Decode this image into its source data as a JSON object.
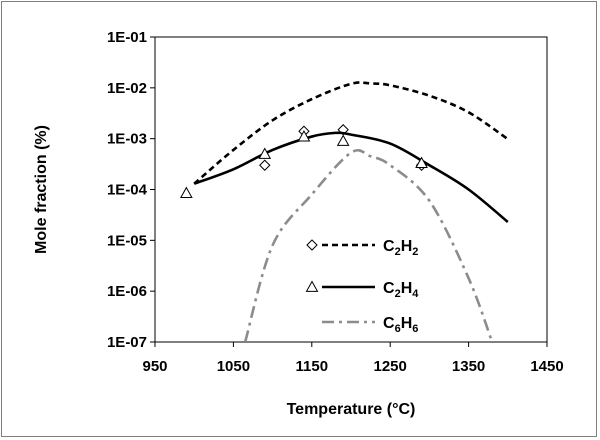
{
  "chart_data": {
    "type": "line",
    "title": "",
    "xlabel": "Temperature (°C)",
    "ylabel": "Mole fraction (%)",
    "x_range": [
      950,
      1450
    ],
    "y_range": [
      1e-07,
      0.1
    ],
    "y_scale": "log",
    "x_ticks": [
      "950",
      "1050",
      "1150",
      "1250",
      "1350",
      "1450"
    ],
    "y_ticks": [
      "1E-07",
      "1E-06",
      "1E-05",
      "1E-04",
      "1E-03",
      "1E-02",
      "1E-01"
    ],
    "grid": false,
    "legend_position": "center",
    "series": [
      {
        "name": "C2H2",
        "name_parts": [
          [
            "C",
            false
          ],
          [
            "2",
            true
          ],
          [
            "H",
            false
          ],
          [
            "2",
            true
          ]
        ],
        "line_style": "dashed",
        "line_color": "#000000",
        "marker": "diamond",
        "curve": [
          [
            1000,
            0.00013
          ],
          [
            1050,
            0.0006
          ],
          [
            1100,
            0.0023
          ],
          [
            1150,
            0.006
          ],
          [
            1200,
            0.012
          ],
          [
            1225,
            0.0122
          ],
          [
            1250,
            0.0112
          ],
          [
            1300,
            0.007
          ],
          [
            1350,
            0.0033
          ],
          [
            1400,
            0.00098
          ]
        ],
        "points": [
          [
            1090,
            0.0003
          ],
          [
            1140,
            0.0014
          ],
          [
            1190,
            0.0015
          ],
          [
            1290,
            0.0003
          ]
        ]
      },
      {
        "name": "C2H4",
        "name_parts": [
          [
            "C",
            false
          ],
          [
            "2",
            true
          ],
          [
            "H",
            false
          ],
          [
            "4",
            true
          ]
        ],
        "line_style": "solid",
        "line_color": "#000000",
        "marker": "triangle",
        "curve": [
          [
            1000,
            0.00013
          ],
          [
            1050,
            0.00025
          ],
          [
            1100,
            0.0006
          ],
          [
            1150,
            0.0011
          ],
          [
            1180,
            0.0013
          ],
          [
            1200,
            0.0012
          ],
          [
            1250,
            0.0008
          ],
          [
            1300,
            0.0003
          ],
          [
            1350,
            0.0001
          ],
          [
            1400,
            2.3e-05
          ]
        ],
        "points": [
          [
            990,
            8.5e-05
          ],
          [
            1090,
            0.0005
          ],
          [
            1140,
            0.0011
          ],
          [
            1190,
            0.0009
          ],
          [
            1290,
            0.00033
          ]
        ]
      },
      {
        "name": "C6H6",
        "name_parts": [
          [
            "C",
            false
          ],
          [
            "6",
            true
          ],
          [
            "H",
            false
          ],
          [
            "6",
            true
          ]
        ],
        "line_style": "dashdot",
        "line_color": "#8c8c8c",
        "marker": "none",
        "curve": [
          [
            1065,
            1e-07
          ],
          [
            1100,
            8e-06
          ],
          [
            1150,
            8e-05
          ],
          [
            1200,
            0.00053
          ],
          [
            1225,
            0.00045
          ],
          [
            1250,
            0.0003
          ],
          [
            1300,
            6e-05
          ],
          [
            1350,
            1.8e-06
          ],
          [
            1380,
            1e-07
          ]
        ],
        "points": []
      }
    ]
  }
}
